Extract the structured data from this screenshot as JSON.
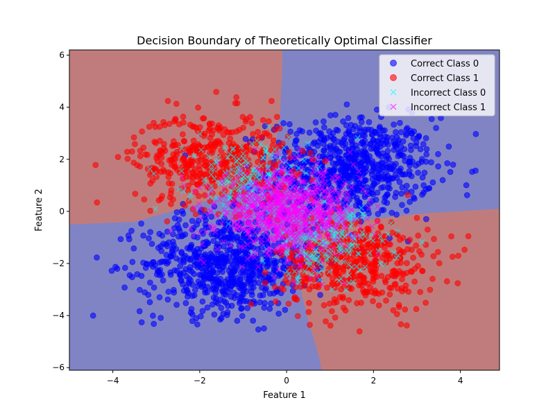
{
  "chart_data": {
    "type": "scatter",
    "title": "Decision Boundary of Theoretically Optimal Classifier",
    "xlabel": "Feature 1",
    "ylabel": "Feature 2",
    "xlim": [
      -5,
      4.9
    ],
    "ylim": [
      -6.1,
      6.2
    ],
    "x_ticks": [
      "−4",
      "−2",
      "0",
      "2",
      "4"
    ],
    "x_tick_values": [
      -4,
      -2,
      0,
      2,
      4
    ],
    "y_ticks": [
      "−6",
      "−4",
      "−2",
      "0",
      "2",
      "4",
      "6"
    ],
    "y_tick_values": [
      -6,
      -4,
      -2,
      0,
      2,
      4,
      6
    ],
    "grid": false,
    "legend_position": "top-right",
    "regions": {
      "class0_color": "#8084c4",
      "class1_color": "#c07c7c",
      "description_values": "class 1 where sign(x) != sign(y) outside the central hyperbolic band"
    },
    "series": [
      {
        "name": "Correct Class 0",
        "marker": "circle",
        "color": "#0000ff",
        "opacity": 0.6,
        "clusters": [
          {
            "cx": 1.5,
            "cy": 1.7,
            "spread": 0.95,
            "count": 700
          },
          {
            "cx": -1.4,
            "cy": -2.0,
            "spread": 0.95,
            "count": 700
          }
        ]
      },
      {
        "name": "Correct Class 1",
        "marker": "circle",
        "color": "#ff0000",
        "opacity": 0.6,
        "clusters": [
          {
            "cx": -1.7,
            "cy": 2.0,
            "spread": 0.9,
            "count": 450
          },
          {
            "cx": 1.6,
            "cy": -2.0,
            "spread": 0.9,
            "count": 450
          }
        ]
      },
      {
        "name": "Incorrect Class 0",
        "marker": "x",
        "color": "#00ffff",
        "opacity": 0.6,
        "clusters": [
          {
            "cx": -0.9,
            "cy": 1.3,
            "spread": 0.7,
            "count": 180
          },
          {
            "cx": 1.0,
            "cy": -1.3,
            "spread": 0.7,
            "count": 180
          }
        ]
      },
      {
        "name": "Incorrect Class 1",
        "marker": "x",
        "color": "#ff00ff",
        "opacity": 0.6,
        "clusters": [
          {
            "cx": 0.0,
            "cy": 0.0,
            "spread": 0.8,
            "count": 900
          }
        ]
      }
    ]
  }
}
